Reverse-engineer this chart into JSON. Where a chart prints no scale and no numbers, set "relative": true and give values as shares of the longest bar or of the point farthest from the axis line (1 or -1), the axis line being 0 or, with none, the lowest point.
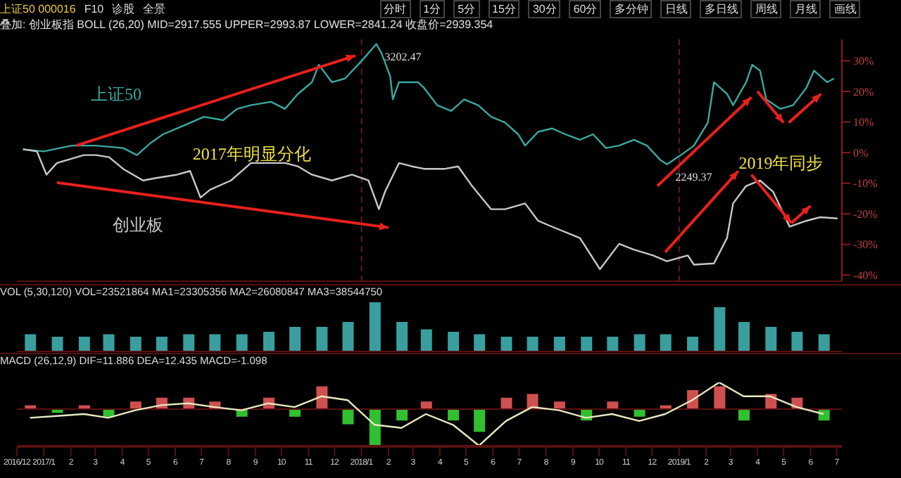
{
  "chart_data": [
    {
      "type": "line",
      "title": "上证50 000016",
      "subtitle": "叠加: 创业板指 BOLL (26,20) MID=2917.555 UPPER=2993.87 LOWER=2841.24 收盘价=2939.354",
      "xlim": [
        "2016-12-01",
        "2019-07-07"
      ],
      "tick_labels": "y",
      "ylim": [
        -42,
        37
      ],
      "yticks": [
        {
          "value": -40,
          "label": "-40%"
        },
        {
          "value": -30,
          "label": "-30%"
        },
        {
          "value": -20,
          "label": "-20%"
        },
        {
          "value": -10,
          "label": "-10%"
        },
        {
          "value": 0,
          "label": "0%"
        },
        {
          "value": 10,
          "label": "10%"
        },
        {
          "value": 20,
          "label": "20%"
        },
        {
          "value": 30,
          "label": "30%"
        }
      ],
      "ref_lines": [
        {
          "axis": "x",
          "value": "2018-01-01",
          "color": "#6a1a1a",
          "line_style": "dashed"
        },
        {
          "axis": "x",
          "value": "2019-01-01",
          "color": "#6a1a1a",
          "line_style": "dashed"
        }
      ],
      "series": [
        {
          "name": "上证50",
          "color": "#3aa8a0",
          "x": [
            "2016-12-08",
            "2017-01-01",
            "2017-02-02",
            "2017-03-02",
            "2017-04-02",
            "2017-04-18",
            "2017-05-03",
            "2017-05-18",
            "2017-06-03",
            "2017-07-04",
            "2017-07-26",
            "2017-08-11",
            "2017-08-27",
            "2017-09-19",
            "2017-10-05",
            "2017-10-20",
            "2017-11-05",
            "2017-11-13",
            "2017-11-28",
            "2017-12-13",
            "2017-12-28",
            "2018-01-09",
            "2018-01-18",
            "2018-01-24",
            "2018-02-03",
            "2018-02-06",
            "2018-02-13",
            "2018-03-07",
            "2018-03-14",
            "2018-03-29",
            "2018-04-14",
            "2018-04-29",
            "2018-05-15",
            "2018-05-30",
            "2018-06-15",
            "2018-06-30",
            "2018-07-08",
            "2018-07-23",
            "2018-08-08",
            "2018-08-23",
            "2018-09-09",
            "2018-09-24",
            "2018-10-09",
            "2018-10-24",
            "2018-11-10",
            "2018-11-25",
            "2018-12-10",
            "2018-12-18",
            "2019-01-03",
            "2019-01-18",
            "2019-02-03",
            "2019-02-10",
            "2019-02-25",
            "2019-03-04",
            "2019-03-19",
            "2019-03-26",
            "2019-04-04",
            "2019-04-11",
            "2019-04-27",
            "2019-05-12",
            "2019-05-27",
            "2019-06-05",
            "2019-06-20",
            "2019-06-28"
          ],
          "values": [
            1.1,
            0.4,
            2.3,
            2.3,
            1.5,
            -0.8,
            3.0,
            6.0,
            7.9,
            11.7,
            10.6,
            14.3,
            15.5,
            16.6,
            14.3,
            19.2,
            23.0,
            28.7,
            23.0,
            24.2,
            28.7,
            32.5,
            35.5,
            32.5,
            24.9,
            17.4,
            23.0,
            23.0,
            21.1,
            15.5,
            13.6,
            17.4,
            15.5,
            11.7,
            9.8,
            6.0,
            2.3,
            6.8,
            7.9,
            6.0,
            4.2,
            6.0,
            1.5,
            2.3,
            4.2,
            2.3,
            -2.3,
            -3.8,
            -0.8,
            2.3,
            9.8,
            23.0,
            19.2,
            15.5,
            23.0,
            28.7,
            26.8,
            17.4,
            14.3,
            15.5,
            21.1,
            26.8,
            23.0,
            24.2
          ]
        },
        {
          "name": "创业板",
          "color": "#c8c8c8",
          "x": [
            "2016-12-08",
            "2016-12-24",
            "2017-01-04",
            "2017-01-16",
            "2017-02-16",
            "2017-03-02",
            "2017-03-17",
            "2017-04-02",
            "2017-04-25",
            "2017-05-10",
            "2017-06-03",
            "2017-06-18",
            "2017-06-30",
            "2017-07-11",
            "2017-08-04",
            "2017-08-27",
            "2017-09-12",
            "2017-10-05",
            "2017-10-20",
            "2017-11-05",
            "2017-11-28",
            "2017-12-21",
            "2018-01-09",
            "2018-01-21",
            "2018-01-28",
            "2018-02-13",
            "2018-02-28",
            "2018-03-14",
            "2018-04-07",
            "2018-04-22",
            "2018-05-08",
            "2018-05-30",
            "2018-06-15",
            "2018-07-08",
            "2018-07-23",
            "2018-08-08",
            "2018-09-09",
            "2018-10-02",
            "2018-10-24",
            "2018-11-10",
            "2018-12-02",
            "2018-12-18",
            "2019-01-11",
            "2019-01-18",
            "2019-02-10",
            "2019-02-25",
            "2019-03-04",
            "2019-03-19",
            "2019-04-04",
            "2019-04-19",
            "2019-05-08",
            "2019-05-27",
            "2019-06-12",
            "2019-07-02"
          ],
          "values": [
            1.1,
            0.4,
            -7.2,
            -3.4,
            -0.8,
            -0.8,
            -1.5,
            -5.3,
            -9.1,
            -8.3,
            -7.2,
            -6.0,
            -14.7,
            -12.1,
            -9.1,
            -3.4,
            -3.4,
            -3.4,
            -4.5,
            -7.2,
            -9.1,
            -7.2,
            -9.1,
            -18.5,
            -12.8,
            -3.4,
            -4.5,
            -5.3,
            -5.3,
            -4.5,
            -10.9,
            -18.5,
            -18.5,
            -16.6,
            -22.3,
            -24.2,
            -27.9,
            -38.1,
            -29.8,
            -31.7,
            -33.6,
            -35.5,
            -33.6,
            -36.6,
            -36.2,
            -27.9,
            -16.6,
            -10.9,
            -9.1,
            -12.8,
            -24.2,
            -22.3,
            -21.1,
            -21.5
          ]
        }
      ],
      "annotations": [
        "2017年明显分化",
        "2019年同步",
        "F10",
        "诊股",
        "全景",
        "分时",
        "1分",
        "5分",
        "15分",
        "30分",
        "60分",
        "多分钟",
        "日线",
        "多日线",
        "周线",
        "月线",
        "画线",
        {
          "text": "3202.47",
          "x": "2018-01-18",
          "y": 35.5
        },
        {
          "text": "2249.37",
          "x": "2018-12-18",
          "y": -3.8
        }
      ]
    },
    {
      "type": "bar",
      "title": "VOL (5,30,120) VOL=23521864 MA1=23305356 MA2=26080847 MA3=38544750",
      "relative": true,
      "tick_labels": false,
      "xlim": [
        "2016-12-01",
        "2019-07-07"
      ],
      "x": [
        "2016-12-16",
        "2017-01-16",
        "2017-02-16",
        "2017-03-16",
        "2017-04-16",
        "2017-05-16",
        "2017-06-16",
        "2017-07-16",
        "2017-08-16",
        "2017-09-16",
        "2017-10-16",
        "2017-11-16",
        "2017-12-16",
        "2018-01-16",
        "2018-02-16",
        "2018-03-16",
        "2018-04-16",
        "2018-05-16",
        "2018-06-16",
        "2018-07-16",
        "2018-08-16",
        "2018-09-16",
        "2018-10-16",
        "2018-11-16",
        "2018-12-16",
        "2019-01-16",
        "2019-02-16",
        "2019-03-16",
        "2019-04-16",
        "2019-05-16",
        "2019-06-16"
      ],
      "series": [
        {
          "type": "bar",
          "color": "#3a9e9e",
          "values": [
            0.35,
            0.3,
            0.3,
            0.35,
            0.3,
            0.3,
            0.35,
            0.35,
            0.35,
            0.4,
            0.5,
            0.5,
            0.6,
            1.0,
            0.6,
            0.45,
            0.4,
            0.35,
            0.3,
            0.3,
            0.3,
            0.3,
            0.3,
            0.35,
            0.35,
            0.3,
            0.9,
            0.6,
            0.5,
            0.4,
            0.35
          ]
        }
      ]
    },
    {
      "type": "bar",
      "title": "MACD (26,12,9) DIF=11.886 DEA=12.435 MACD=-1.098",
      "relative": true,
      "tick_labels": "x",
      "xlim": [
        "2016-12-01",
        "2019-07-07"
      ],
      "x": [
        "2016-12-16",
        "2017-01-16",
        "2017-02-16",
        "2017-03-16",
        "2017-04-16",
        "2017-05-16",
        "2017-06-16",
        "2017-07-16",
        "2017-08-16",
        "2017-09-16",
        "2017-10-16",
        "2017-11-16",
        "2017-12-16",
        "2018-01-16",
        "2018-02-16",
        "2018-03-16",
        "2018-04-16",
        "2018-05-16",
        "2018-06-16",
        "2018-07-16",
        "2018-08-16",
        "2018-09-16",
        "2018-10-16",
        "2018-11-16",
        "2018-12-16",
        "2019-01-16",
        "2019-02-16",
        "2019-03-16",
        "2019-04-16",
        "2019-05-16",
        "2019-06-16"
      ],
      "xticks": [
        {
          "value": "2016-12-01",
          "label": "2016/12"
        },
        {
          "value": "2017-01-01",
          "label": "2017/1"
        },
        {
          "value": "2017-02-01",
          "label": "2"
        },
        {
          "value": "2017-03-01",
          "label": "3"
        },
        {
          "value": "2017-04-01",
          "label": "4"
        },
        {
          "value": "2017-05-01",
          "label": "5"
        },
        {
          "value": "2017-06-01",
          "label": "6"
        },
        {
          "value": "2017-07-01",
          "label": "7"
        },
        {
          "value": "2017-08-01",
          "label": "8"
        },
        {
          "value": "2017-09-01",
          "label": "9"
        },
        {
          "value": "2017-10-01",
          "label": "10"
        },
        {
          "value": "2017-11-01",
          "label": "11"
        },
        {
          "value": "2017-12-01",
          "label": "12"
        },
        {
          "value": "2018-01-01",
          "label": "2018/1"
        },
        {
          "value": "2018-02-01",
          "label": "2"
        },
        {
          "value": "2018-03-01",
          "label": "3"
        },
        {
          "value": "2018-04-01",
          "label": "4"
        },
        {
          "value": "2018-05-01",
          "label": "5"
        },
        {
          "value": "2018-06-01",
          "label": "6"
        },
        {
          "value": "2018-07-01",
          "label": "7"
        },
        {
          "value": "2018-08-01",
          "label": "8"
        },
        {
          "value": "2018-09-01",
          "label": "9"
        },
        {
          "value": "2018-10-01",
          "label": "10"
        },
        {
          "value": "2018-11-01",
          "label": "11"
        },
        {
          "value": "2018-12-01",
          "label": "12"
        },
        {
          "value": "2019-01-01",
          "label": "2019/1"
        },
        {
          "value": "2019-02-01",
          "label": "2"
        },
        {
          "value": "2019-03-01",
          "label": "3"
        },
        {
          "value": "2019-04-01",
          "label": "4"
        },
        {
          "value": "2019-05-01",
          "label": "5"
        },
        {
          "value": "2019-06-01",
          "label": "6"
        },
        {
          "value": "2019-07-01",
          "label": "7"
        }
      ],
      "series": [
        {
          "colors": [
            "#d05050",
            "#30c030",
            "#d05050",
            "#30c030",
            "#d05050",
            "#d05050",
            "#d05050",
            "#d05050",
            "#30c030",
            "#d05050",
            "#30c030",
            "#d05050",
            "#30c030",
            "#30c030",
            "#30c030",
            "#d05050",
            "#30c030",
            "#30c030",
            "#d05050",
            "#d05050",
            "#d05050",
            "#30c030",
            "#d05050",
            "#30c030",
            "#d05050",
            "#d05050",
            "#d05050",
            "#30c030",
            "#d05050",
            "#d05050",
            "#30c030"
          ],
          "values": [
            0.1,
            -0.1,
            0.1,
            -0.2,
            0.2,
            0.3,
            0.3,
            0.2,
            -0.2,
            0.3,
            -0.2,
            0.6,
            -0.4,
            -1.0,
            -0.3,
            0.2,
            -0.3,
            -0.6,
            0.3,
            0.4,
            0.2,
            -0.3,
            0.2,
            -0.2,
            0.1,
            0.5,
            0.6,
            -0.3,
            0.4,
            0.3,
            -0.3
          ]
        }
      ]
    },
    {
      "type": "line",
      "relative": true,
      "tick_labels": false,
      "xlim": [
        "2016-12-01",
        "2019-07-07"
      ],
      "x": [
        "2016-12-16",
        "2017-01-16",
        "2017-02-16",
        "2017-03-16",
        "2017-04-16",
        "2017-05-16",
        "2017-06-16",
        "2017-07-16",
        "2017-08-16",
        "2017-09-16",
        "2017-10-16",
        "2017-11-16",
        "2017-12-16",
        "2018-01-16",
        "2018-02-16",
        "2018-03-16",
        "2018-04-16",
        "2018-05-16",
        "2018-06-16",
        "2018-07-16",
        "2018-08-16",
        "2018-09-16",
        "2018-10-16",
        "2018-11-16",
        "2018-12-16",
        "2019-01-16",
        "2019-02-16",
        "2019-03-16",
        "2019-04-16",
        "2019-05-16",
        "2019-06-16"
      ],
      "series": [
        {
          "color": "#e8e8c0",
          "values": [
            0.44,
            0.47,
            0.5,
            0.44,
            0.56,
            0.64,
            0.67,
            0.61,
            0.56,
            0.67,
            0.61,
            0.78,
            0.72,
            0.33,
            0.28,
            0.5,
            0.33,
            0,
            0.39,
            0.61,
            0.56,
            0.44,
            0.5,
            0.39,
            0.5,
            0.72,
            1,
            0.78,
            0.78,
            0.61,
            0.5
          ]
        }
      ]
    }
  ]
}
